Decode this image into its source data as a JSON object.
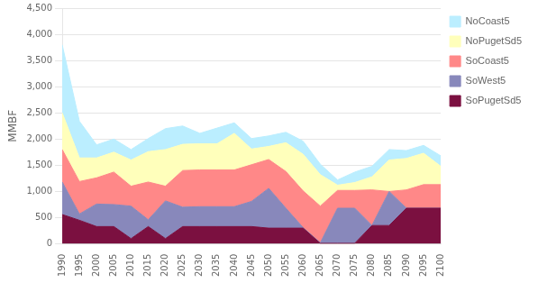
{
  "chart_data": {
    "type": "area",
    "stacked": true,
    "x": [
      1990,
      1995,
      2000,
      2005,
      2010,
      2015,
      2020,
      2025,
      2030,
      2035,
      2040,
      2045,
      2050,
      2055,
      2060,
      2065,
      2070,
      2075,
      2080,
      2085,
      2090,
      2095,
      2100
    ],
    "series": [
      {
        "name": "SoPugetSd5",
        "color": "#7B1040",
        "values": [
          560,
          450,
          330,
          330,
          100,
          330,
          100,
          330,
          330,
          330,
          330,
          330,
          300,
          300,
          300,
          10,
          10,
          10,
          350,
          350,
          680,
          680,
          680
        ]
      },
      {
        "name": "SoWest5",
        "color": "#8888BB",
        "values": [
          620,
          120,
          430,
          420,
          620,
          130,
          720,
          370,
          380,
          380,
          380,
          480,
          760,
          380,
          10,
          10,
          670,
          670,
          0,
          650,
          0,
          0,
          0
        ]
      },
      {
        "name": "SoCoast5",
        "color": "#FF8888",
        "values": [
          620,
          620,
          500,
          620,
          380,
          720,
          280,
          700,
          700,
          700,
          700,
          700,
          550,
          700,
          700,
          700,
          340,
          340,
          680,
          0,
          350,
          450,
          450
        ]
      },
      {
        "name": "NoPugetSd5",
        "color": "#FFFFBB",
        "values": [
          700,
          450,
          380,
          380,
          500,
          580,
          700,
          500,
          500,
          500,
          700,
          300,
          250,
          550,
          700,
          600,
          100,
          150,
          250,
          600,
          600,
          600,
          350
        ]
      },
      {
        "name": "NoCoast5",
        "color": "#BBEEFF",
        "values": [
          1300,
          700,
          250,
          250,
          200,
          250,
          400,
          350,
          200,
          300,
          200,
          200,
          200,
          200,
          250,
          200,
          100,
          200,
          200,
          200,
          150,
          150,
          200
        ]
      }
    ],
    "ylabel": "MMBF",
    "xlim": [
      1990,
      2100
    ],
    "xticks": [
      1990,
      1995,
      2000,
      2005,
      2010,
      2015,
      2020,
      2025,
      2030,
      2035,
      2040,
      2045,
      2050,
      2055,
      2060,
      2065,
      2070,
      2075,
      2080,
      2085,
      2090,
      2095,
      2100
    ],
    "ylim": [
      0,
      4500
    ],
    "yticks": [
      0,
      500,
      {
        "value": 1000,
        "label": "1,000"
      },
      {
        "value": 1500,
        "label": "1,500"
      },
      {
        "value": 2000,
        "label": "2,000"
      },
      {
        "value": 2500,
        "label": "2,500"
      },
      {
        "value": 3000,
        "label": "3,000"
      },
      {
        "value": 3500,
        "label": "3,500"
      },
      {
        "value": 4000,
        "label": "4,000"
      },
      {
        "value": 4500,
        "label": "4,500"
      }
    ],
    "grid": "y",
    "legend": "right"
  }
}
